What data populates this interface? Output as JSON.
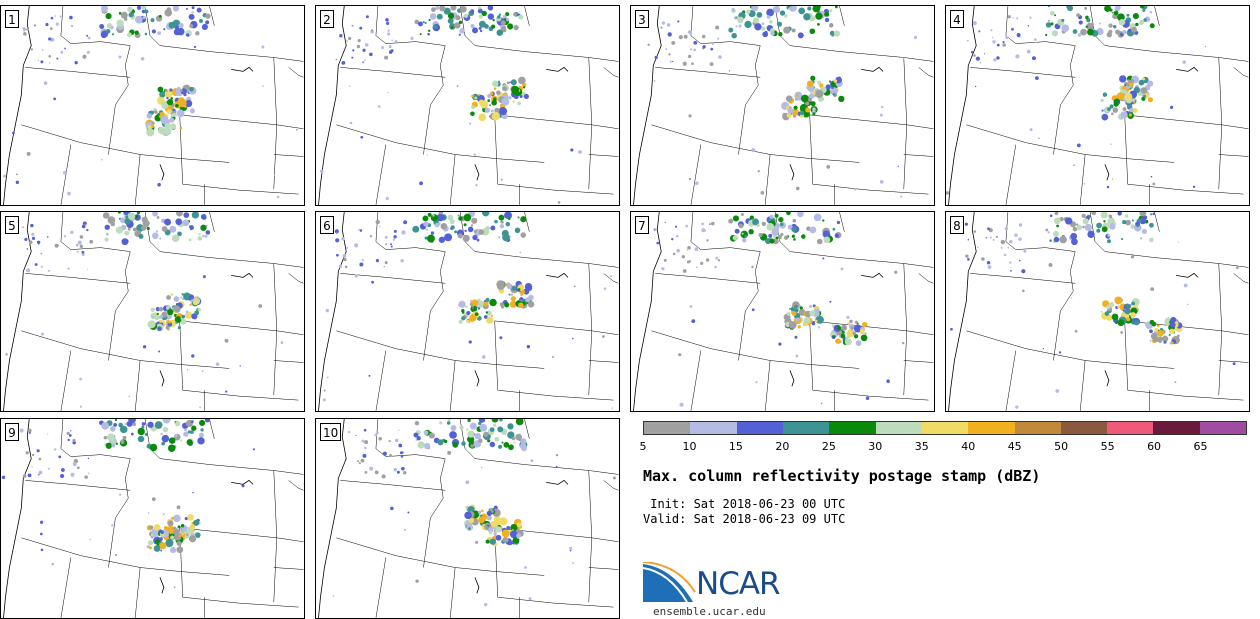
{
  "panels": [
    {
      "label": "1"
    },
    {
      "label": "2"
    },
    {
      "label": "3"
    },
    {
      "label": "4"
    },
    {
      "label": "5"
    },
    {
      "label": "6"
    },
    {
      "label": "7"
    },
    {
      "label": "8"
    },
    {
      "label": "9"
    },
    {
      "label": "10"
    }
  ],
  "colorbar": {
    "colors": [
      "#a0a0a0",
      "#b4bce6",
      "#5460d6",
      "#3e9494",
      "#0a8a0a",
      "#bcdcbc",
      "#f0dc64",
      "#f0b020",
      "#c08a3a",
      "#8a5a3e",
      "#f05a7a",
      "#6a1a3a",
      "#a04ca0"
    ],
    "ticks": [
      "5",
      "10",
      "15",
      "20",
      "25",
      "30",
      "35",
      "40",
      "45",
      "50",
      "55",
      "60",
      "65"
    ]
  },
  "title": "Max. column reflectivity postage stamp (dBZ)",
  "init": " Init: Sat 2018-06-23 00 UTC",
  "valid": "Valid: Sat 2018-06-23 09 UTC",
  "logo_text": "NCAR",
  "site": "ensemble.ucar.edu"
}
